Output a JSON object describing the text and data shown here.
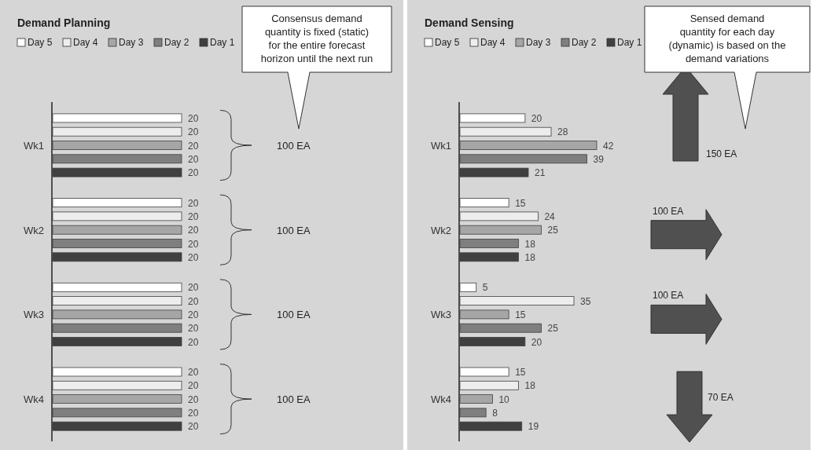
{
  "chart_data": [
    {
      "type": "bar",
      "orientation": "horizontal",
      "title": "Demand Planning",
      "categories": [
        "Wk1",
        "Wk2",
        "Wk3",
        "Wk4"
      ],
      "legend": "top",
      "data_labels": true,
      "series": [
        {
          "name": "Day 5",
          "color": "#ffffff",
          "values": [
            20,
            20,
            20,
            20
          ]
        },
        {
          "name": "Day 4",
          "color": "#ededed",
          "values": [
            20,
            20,
            20,
            20
          ]
        },
        {
          "name": "Day 3",
          "color": "#a6a6a6",
          "values": [
            20,
            20,
            20,
            20
          ]
        },
        {
          "name": "Day 2",
          "color": "#7f7f7f",
          "values": [
            20,
            20,
            20,
            20
          ]
        },
        {
          "name": "Day 1",
          "color": "#404040",
          "values": [
            20,
            20,
            20,
            20
          ]
        }
      ],
      "annotations": [
        "Consensus demand\nquantity is fixed (static)\nfor the entire forecast\nhorizon until the next run",
        "100 EA",
        "100 EA",
        "100 EA",
        "100 EA"
      ]
    },
    {
      "type": "bar",
      "orientation": "horizontal",
      "title": "Demand Sensing",
      "categories": [
        "Wk1",
        "Wk2",
        "Wk3",
        "Wk4"
      ],
      "legend": "top",
      "data_labels": true,
      "series": [
        {
          "name": "Day 5",
          "color": "#ffffff",
          "values": [
            20,
            15,
            5,
            15
          ]
        },
        {
          "name": "Day 4",
          "color": "#ededed",
          "values": [
            28,
            24,
            35,
            18
          ]
        },
        {
          "name": "Day 3",
          "color": "#a6a6a6",
          "values": [
            42,
            25,
            15,
            10
          ]
        },
        {
          "name": "Day 2",
          "color": "#7f7f7f",
          "values": [
            39,
            18,
            25,
            8
          ]
        },
        {
          "name": "Day 1",
          "color": "#404040",
          "values": [
            21,
            18,
            20,
            19
          ]
        }
      ],
      "annotations": [
        "Sensed demand\nquantity for each day\n(dynamic) is based on the\ndemand variations",
        "150 EA",
        "100 EA",
        "100 EA",
        "70 EA"
      ]
    }
  ]
}
